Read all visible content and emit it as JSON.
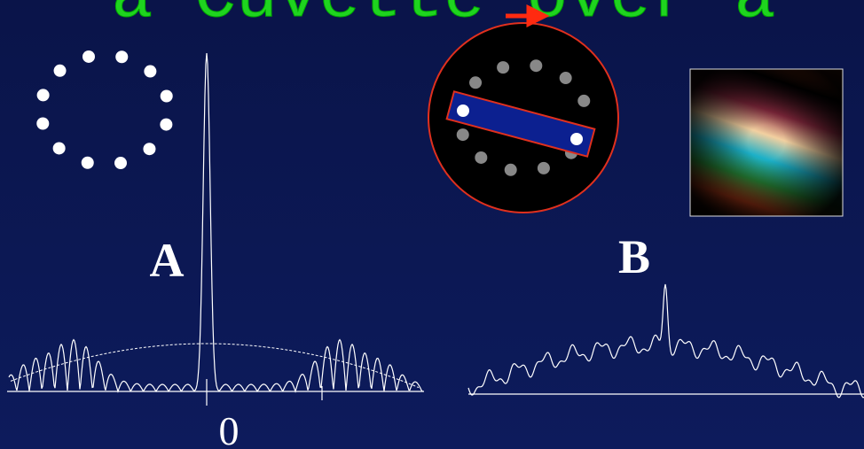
{
  "slide": {
    "title": "a Cuvette over a",
    "label_a": "A",
    "label_b": "B",
    "axis_zero": "0"
  }
}
